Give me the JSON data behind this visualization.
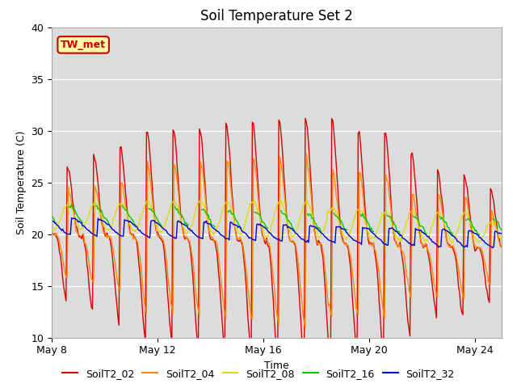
{
  "title": "Soil Temperature Set 2",
  "xlabel": "Time",
  "ylabel": "Soil Temperature (C)",
  "ylim": [
    10,
    40
  ],
  "bg_color": "#dcdcdc",
  "fig_color": "#ffffff",
  "label_box_text": "TW_met",
  "label_box_bg": "#ffffaa",
  "label_box_edge": "#cc0000",
  "series": {
    "SoilT2_02": {
      "color": "#dd0000",
      "linewidth": 1.0
    },
    "SoilT2_04": {
      "color": "#ff8800",
      "linewidth": 1.0
    },
    "SoilT2_08": {
      "color": "#dddd00",
      "linewidth": 1.0
    },
    "SoilT2_16": {
      "color": "#00cc00",
      "linewidth": 1.0
    },
    "SoilT2_32": {
      "color": "#0000cc",
      "linewidth": 1.0
    }
  },
  "yticks": [
    10,
    15,
    20,
    25,
    30,
    35,
    40
  ],
  "grid_color": "#ffffff",
  "title_fontsize": 12,
  "axis_label_fontsize": 9,
  "tick_fontsize": 9
}
